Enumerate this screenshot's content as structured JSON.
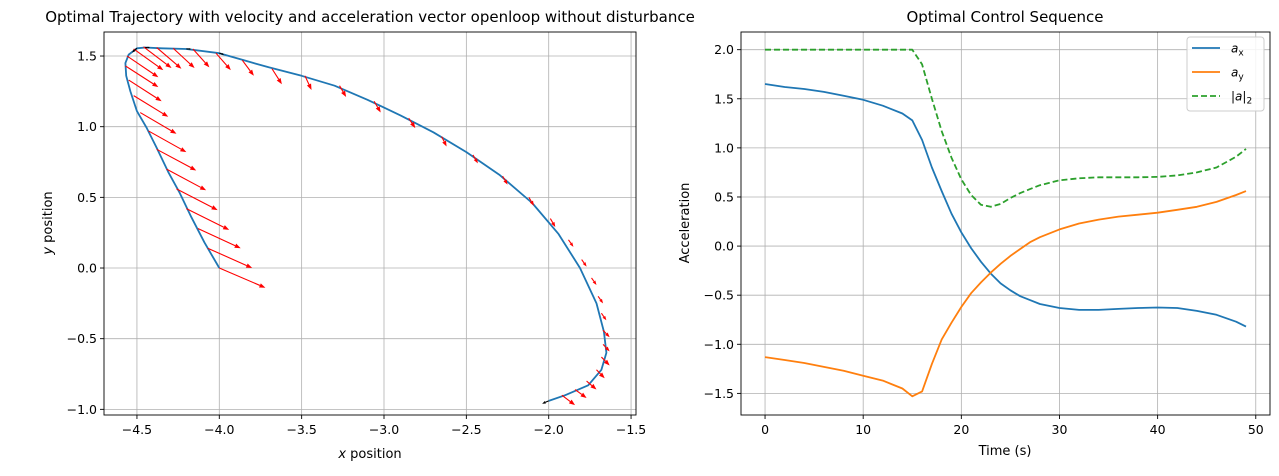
{
  "chart_data": [
    {
      "type": "line",
      "title": "Optimal Trajectory with velocity and acceleration vector openloop without disturbance",
      "xlabel_prefix": "x",
      "xlabel": "position",
      "ylabel_prefix": "y",
      "ylabel": "position",
      "xlim": [
        -4.7,
        -1.47
      ],
      "ylim": [
        -1.04,
        1.67
      ],
      "xticks": [
        -4.5,
        -4.0,
        -3.5,
        -3.0,
        -2.5,
        -2.0,
        -1.5
      ],
      "xtick_labels": [
        "−4.5",
        "−4.0",
        "−3.5",
        "−3.0",
        "−2.5",
        "−2.0",
        "−1.5"
      ],
      "yticks": [
        -1.0,
        -0.5,
        0.0,
        0.5,
        1.0,
        1.5
      ],
      "ytick_labels": [
        "−1.0",
        "−0.5",
        "0.0",
        "0.5",
        "1.0",
        "1.5"
      ],
      "grid": true,
      "colors": {
        "trajectory": "#1f77b4",
        "acceleration": "#ff0000",
        "velocity": "#000000"
      },
      "trajectory": [
        [
          -4.0,
          0.0
        ],
        [
          -4.09,
          0.18
        ],
        [
          -4.17,
          0.36
        ],
        [
          -4.24,
          0.53
        ],
        [
          -4.31,
          0.68
        ],
        [
          -4.38,
          0.85
        ],
        [
          -4.44,
          0.99
        ],
        [
          -4.5,
          1.11
        ],
        [
          -4.54,
          1.25
        ],
        [
          -4.565,
          1.36
        ],
        [
          -4.57,
          1.45
        ],
        [
          -4.55,
          1.51
        ],
        [
          -4.5,
          1.555
        ],
        [
          -4.45,
          1.56
        ],
        [
          -4.35,
          1.555
        ],
        [
          -4.2,
          1.55
        ],
        [
          -4.0,
          1.52
        ],
        [
          -3.85,
          1.47
        ],
        [
          -3.7,
          1.42
        ],
        [
          -3.5,
          1.36
        ],
        [
          -3.3,
          1.29
        ],
        [
          -3.1,
          1.19
        ],
        [
          -2.9,
          1.08
        ],
        [
          -2.7,
          0.96
        ],
        [
          -2.5,
          0.82
        ],
        [
          -2.3,
          0.66
        ],
        [
          -2.1,
          0.46
        ],
        [
          -1.94,
          0.24
        ],
        [
          -1.81,
          0.0
        ],
        [
          -1.71,
          -0.25
        ],
        [
          -1.665,
          -0.45
        ],
        [
          -1.65,
          -0.6
        ],
        [
          -1.68,
          -0.72
        ],
        [
          -1.76,
          -0.83
        ],
        [
          -1.9,
          -0.9
        ],
        [
          -2.0,
          -0.94
        ]
      ],
      "acceleration_vectors": [
        [
          -4.0,
          0.0,
          0.28,
          -0.14
        ],
        [
          -4.07,
          0.14,
          0.27,
          -0.14
        ],
        [
          -4.13,
          0.28,
          0.26,
          -0.14
        ],
        [
          -4.2,
          0.42,
          0.26,
          -0.15
        ],
        [
          -4.26,
          0.56,
          0.25,
          -0.15
        ],
        [
          -4.32,
          0.7,
          0.24,
          -0.15
        ],
        [
          -4.38,
          0.84,
          0.24,
          -0.15
        ],
        [
          -4.43,
          0.97,
          0.23,
          -0.15
        ],
        [
          -4.48,
          1.1,
          0.22,
          -0.15
        ],
        [
          -4.52,
          1.22,
          0.21,
          -0.15
        ],
        [
          -4.55,
          1.33,
          0.2,
          -0.15
        ],
        [
          -4.57,
          1.43,
          0.2,
          -0.15
        ],
        [
          -4.56,
          1.5,
          0.19,
          -0.15
        ],
        [
          -4.52,
          1.55,
          0.18,
          -0.15
        ],
        [
          -4.46,
          1.565,
          0.17,
          -0.15
        ],
        [
          -4.38,
          1.56,
          0.15,
          -0.15
        ],
        [
          -4.28,
          1.555,
          0.13,
          -0.14
        ],
        [
          -4.16,
          1.55,
          0.1,
          -0.13
        ],
        [
          -4.02,
          1.52,
          0.09,
          -0.12
        ],
        [
          -3.86,
          1.47,
          0.07,
          -0.11
        ],
        [
          -3.68,
          1.41,
          0.06,
          -0.11
        ],
        [
          -3.48,
          1.36,
          0.04,
          -0.1
        ],
        [
          -3.27,
          1.29,
          0.04,
          -0.08
        ],
        [
          -3.06,
          1.18,
          0.04,
          -0.08
        ],
        [
          -2.85,
          1.06,
          0.04,
          -0.07
        ],
        [
          -2.65,
          0.93,
          0.03,
          -0.07
        ],
        [
          -2.46,
          0.8,
          0.03,
          -0.06
        ],
        [
          -2.28,
          0.65,
          0.03,
          -0.06
        ],
        [
          -2.12,
          0.5,
          0.03,
          -0.06
        ],
        [
          -1.99,
          0.35,
          0.03,
          -0.06
        ],
        [
          -1.88,
          0.2,
          0.03,
          -0.05
        ],
        [
          -1.8,
          0.06,
          0.03,
          -0.05
        ],
        [
          -1.74,
          -0.07,
          0.03,
          -0.05
        ],
        [
          -1.7,
          -0.2,
          0.03,
          -0.05
        ],
        [
          -1.68,
          -0.32,
          0.03,
          -0.05
        ],
        [
          -1.67,
          -0.44,
          0.04,
          -0.05
        ],
        [
          -1.67,
          -0.54,
          0.04,
          -0.05
        ],
        [
          -1.68,
          -0.63,
          0.05,
          -0.06
        ],
        [
          -1.71,
          -0.72,
          0.05,
          -0.06
        ],
        [
          -1.77,
          -0.8,
          0.06,
          -0.06
        ],
        [
          -1.84,
          -0.86,
          0.07,
          -0.06
        ],
        [
          -1.92,
          -0.9,
          0.08,
          -0.07
        ]
      ],
      "velocity_vectors": [
        [
          -2.0,
          -0.94,
          -0.04,
          -0.02
        ],
        [
          -4.5,
          1.555,
          -0.03,
          -0.03
        ],
        [
          -4.45,
          1.56,
          0.03,
          0.0
        ],
        [
          -4.2,
          1.55,
          0.03,
          0.0
        ],
        [
          -4.0,
          1.52,
          0.03,
          -0.01
        ]
      ]
    },
    {
      "type": "line",
      "title": "Optimal Control Sequence",
      "xlabel": "Time (s)",
      "ylabel": "Acceleration",
      "xlim": [
        -2.45,
        51.45
      ],
      "ylim": [
        -1.72,
        2.18
      ],
      "xticks": [
        0,
        10,
        20,
        30,
        40,
        50
      ],
      "xtick_labels": [
        "0",
        "10",
        "20",
        "30",
        "40",
        "50"
      ],
      "yticks": [
        -1.5,
        -1.0,
        -0.5,
        0.0,
        0.5,
        1.0,
        1.5,
        2.0
      ],
      "ytick_labels": [
        "−1.5",
        "−1.0",
        "−0.5",
        "0.0",
        "0.5",
        "1.0",
        "1.5",
        "2.0"
      ],
      "grid": true,
      "legend_position": "top-right",
      "series": [
        {
          "name_base": "a",
          "name_sub": "x",
          "color": "#1f77b4",
          "dash": "solid",
          "x": [
            0,
            2,
            4,
            6,
            8,
            10,
            12,
            14,
            15,
            16,
            17,
            18,
            19,
            20,
            21,
            22,
            23,
            24,
            25,
            26,
            27,
            28,
            30,
            32,
            34,
            36,
            38,
            40,
            42,
            44,
            46,
            48,
            49
          ],
          "y": [
            1.65,
            1.62,
            1.6,
            1.57,
            1.53,
            1.49,
            1.43,
            1.35,
            1.28,
            1.08,
            0.8,
            0.56,
            0.33,
            0.14,
            -0.02,
            -0.16,
            -0.28,
            -0.38,
            -0.45,
            -0.51,
            -0.55,
            -0.59,
            -0.63,
            -0.65,
            -0.65,
            -0.64,
            -0.63,
            -0.625,
            -0.63,
            -0.66,
            -0.7,
            -0.77,
            -0.82
          ]
        },
        {
          "name_base": "a",
          "name_sub": "y",
          "color": "#ff7f0e",
          "dash": "solid",
          "x": [
            0,
            2,
            4,
            6,
            8,
            10,
            12,
            14,
            15,
            16,
            17,
            18,
            19,
            20,
            21,
            22,
            23,
            24,
            25,
            26,
            27,
            28,
            30,
            32,
            34,
            36,
            38,
            40,
            42,
            44,
            46,
            48,
            49
          ],
          "y": [
            -1.13,
            -1.16,
            -1.19,
            -1.23,
            -1.27,
            -1.32,
            -1.37,
            -1.45,
            -1.53,
            -1.48,
            -1.2,
            -0.95,
            -0.78,
            -0.62,
            -0.48,
            -0.37,
            -0.27,
            -0.18,
            -0.1,
            -0.03,
            0.04,
            0.09,
            0.17,
            0.23,
            0.27,
            0.3,
            0.32,
            0.34,
            0.37,
            0.4,
            0.45,
            0.52,
            0.56
          ]
        },
        {
          "name_base": "|a|",
          "name_sub": "2",
          "color": "#2ca02c",
          "dash": "dashed",
          "x": [
            0,
            5,
            10,
            14,
            15,
            16,
            17,
            18,
            19,
            20,
            21,
            22,
            23,
            24,
            25,
            26,
            27,
            28,
            30,
            32,
            34,
            36,
            38,
            40,
            42,
            44,
            46,
            48,
            49
          ],
          "y": [
            2.0,
            2.0,
            2.0,
            2.0,
            2.0,
            1.85,
            1.5,
            1.17,
            0.9,
            0.68,
            0.52,
            0.42,
            0.4,
            0.43,
            0.49,
            0.54,
            0.58,
            0.62,
            0.67,
            0.69,
            0.7,
            0.7,
            0.7,
            0.705,
            0.72,
            0.75,
            0.8,
            0.91,
            0.99
          ]
        }
      ]
    }
  ]
}
